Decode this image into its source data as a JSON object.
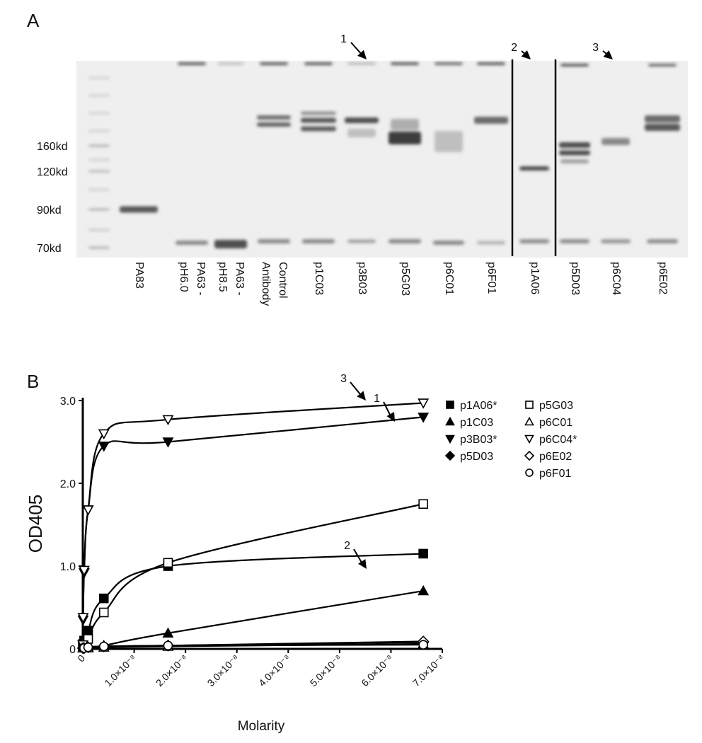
{
  "panel_a": {
    "label": "A",
    "markers": [
      "160kd",
      "120kd",
      "90kd",
      "70kd"
    ],
    "lanes": [
      "PA83",
      "PA63 - pH6.0",
      "PA63 - pH8.5",
      "Control Antibody",
      "p1C03",
      "p3B03",
      "p5G03",
      "p6C01",
      "p6F01",
      "p1A06",
      "p5D03",
      "p6C04",
      "p6E02"
    ],
    "arrows": [
      "1",
      "2",
      "3"
    ]
  },
  "chart_data": {
    "type": "scatter",
    "panel_label": "B",
    "xlabel": "Molarity",
    "ylabel": "OD405",
    "x": [
      1.6e-11,
      6.5e-11,
      2.6e-10,
      1.04e-09,
      4.1e-09,
      1.66e-08,
      6.63e-08
    ],
    "xlim": [
      0,
      7e-08
    ],
    "ylim": [
      0,
      3
    ],
    "xticks": [
      0,
      {
        "value": 1e-08,
        "label": "1.0×10⁻⁸"
      },
      {
        "value": 2e-08,
        "label": "2.0×10⁻⁸"
      },
      {
        "value": 3e-08,
        "label": "3.0×10⁻⁸"
      },
      {
        "value": 4e-08,
        "label": "4.0×10⁻⁸"
      },
      {
        "value": 5e-08,
        "label": "5.0×10⁻⁸"
      },
      {
        "value": 6e-08,
        "label": "6.0×10⁻⁸"
      },
      {
        "value": 7e-08,
        "label": "7.0×10⁻⁸"
      }
    ],
    "yticks": [
      0,
      {
        "value": 1,
        "label": "1.0"
      },
      {
        "value": 2,
        "label": "2.0"
      },
      {
        "value": 3,
        "label": "3.0"
      }
    ],
    "lines": true,
    "legend": "right",
    "series": [
      {
        "name": "p1A06*",
        "color": "#000000",
        "marker": "square",
        "filled": true,
        "values": [
          0.03,
          0.06,
          0.1,
          0.22,
          0.61,
          1.0,
          1.15
        ]
      },
      {
        "name": "p1C03",
        "color": "#000000",
        "marker": "triangle-up",
        "filled": true,
        "values": [
          0.01,
          0.01,
          0.02,
          0.02,
          0.04,
          0.19,
          0.7
        ]
      },
      {
        "name": "p3B03*",
        "color": "#000000",
        "marker": "triangle-down",
        "filled": true,
        "values": [
          0.05,
          0.35,
          0.92,
          1.68,
          2.45,
          2.5,
          2.8
        ]
      },
      {
        "name": "p5D03",
        "color": "#000000",
        "marker": "diamond",
        "filled": true,
        "values": [
          0.01,
          0.01,
          0.01,
          0.02,
          0.03,
          0.04,
          0.08
        ]
      },
      {
        "name": "p5G03",
        "color": "#000000",
        "marker": "square",
        "filled": false,
        "values": [
          0.02,
          0.03,
          0.06,
          0.12,
          0.44,
          1.04,
          1.75
        ]
      },
      {
        "name": "p6C01",
        "color": "#000000",
        "marker": "triangle-up",
        "filled": false,
        "values": [
          0.01,
          0.01,
          0.01,
          0.01,
          0.02,
          0.03,
          0.06
        ]
      },
      {
        "name": "p6C04*",
        "color": "#000000",
        "marker": "triangle-down",
        "filled": false,
        "values": [
          0.05,
          0.38,
          0.95,
          1.68,
          2.6,
          2.77,
          2.97
        ]
      },
      {
        "name": "p6E02",
        "color": "#000000",
        "marker": "diamond",
        "filled": false,
        "values": [
          0.01,
          0.01,
          0.01,
          0.02,
          0.03,
          0.04,
          0.09
        ]
      },
      {
        "name": "p6F01",
        "color": "#000000",
        "marker": "circle",
        "filled": false,
        "values": [
          0.01,
          0.01,
          0.01,
          0.02,
          0.03,
          0.04,
          0.05
        ]
      }
    ],
    "annotations": [
      "3",
      "1",
      "2"
    ]
  }
}
